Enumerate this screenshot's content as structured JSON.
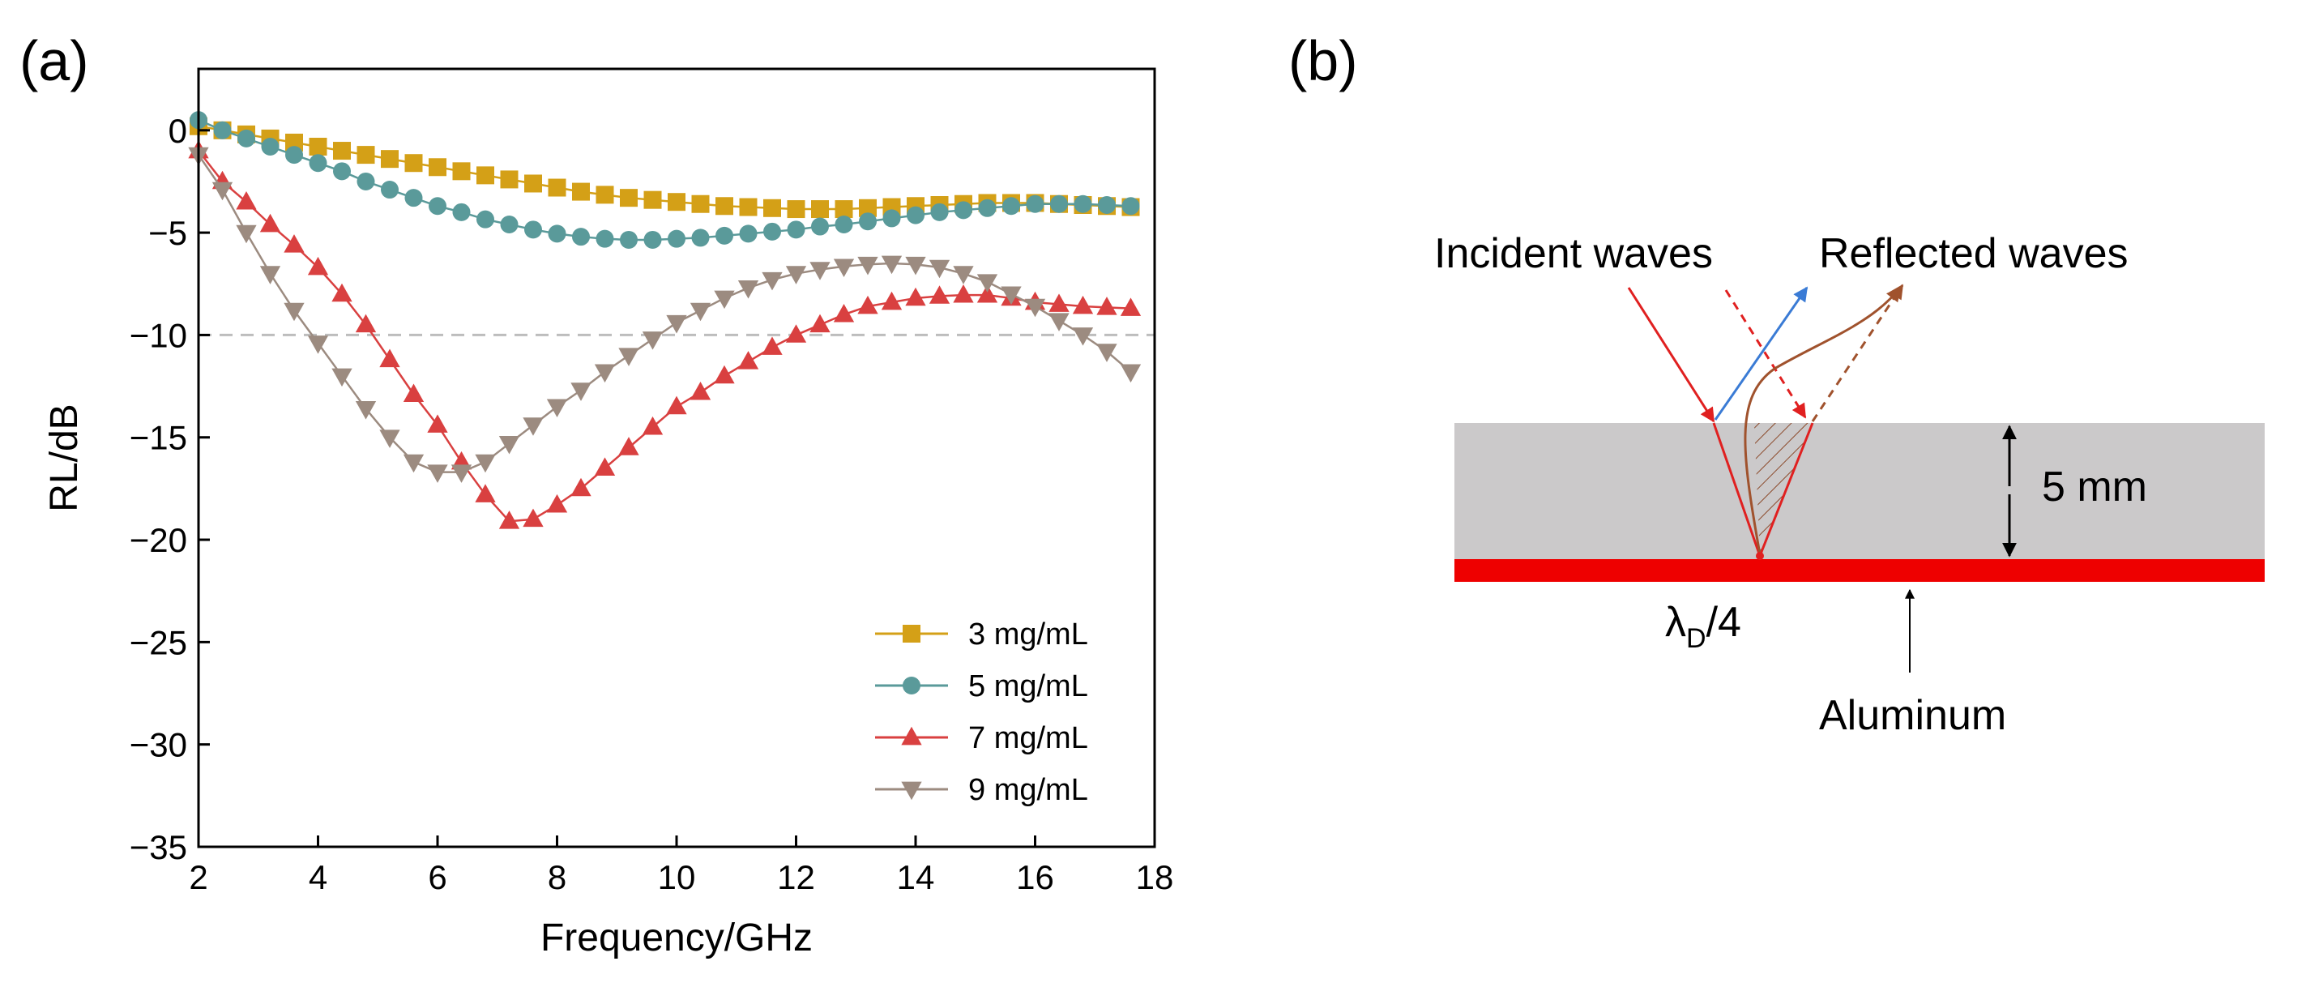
{
  "panels": {
    "a_label": "(a)",
    "b_label": "(b)"
  },
  "chart_data": {
    "type": "line",
    "xlabel": "Frequency/GHz",
    "ylabel": "RL/dB",
    "xlim": [
      2,
      18
    ],
    "ylim": [
      -35,
      3
    ],
    "xticks": [
      2,
      4,
      6,
      8,
      10,
      12,
      14,
      16,
      18
    ],
    "yticks": [
      0,
      -5,
      -10,
      -15,
      -20,
      -25,
      -30,
      -35
    ],
    "xtick_labels": [
      "2",
      "4",
      "6",
      "8",
      "10",
      "12",
      "14",
      "16",
      "18"
    ],
    "ytick_labels": [
      "0",
      "−5",
      "−10",
      "−15",
      "−20",
      "−25",
      "−30",
      "−35"
    ],
    "reference_line": -10,
    "legend_position": "bottom-right",
    "series": [
      {
        "name": "3 mg/mL",
        "color": "#d4a017",
        "marker": "square",
        "x": [
          2,
          2.4,
          2.8,
          3.2,
          3.6,
          4,
          4.4,
          4.8,
          5.2,
          5.6,
          6,
          6.4,
          6.8,
          7.2,
          7.6,
          8,
          8.4,
          8.8,
          9.2,
          9.6,
          10,
          10.4,
          10.8,
          11.2,
          11.6,
          12,
          12.4,
          12.8,
          13.2,
          13.6,
          14,
          14.4,
          14.8,
          15.2,
          15.6,
          16,
          16.4,
          16.8,
          17.2,
          17.6
        ],
        "values": [
          0.2,
          0.0,
          -0.2,
          -0.4,
          -0.6,
          -0.8,
          -1.0,
          -1.2,
          -1.4,
          -1.6,
          -1.8,
          -2.0,
          -2.2,
          -2.4,
          -2.6,
          -2.8,
          -3.0,
          -3.15,
          -3.3,
          -3.4,
          -3.5,
          -3.6,
          -3.7,
          -3.75,
          -3.8,
          -3.85,
          -3.85,
          -3.85,
          -3.8,
          -3.75,
          -3.7,
          -3.65,
          -3.6,
          -3.55,
          -3.55,
          -3.55,
          -3.6,
          -3.65,
          -3.7,
          -3.75
        ]
      },
      {
        "name": "5 mg/mL",
        "color": "#5a9a9a",
        "marker": "circle",
        "x": [
          2,
          2.4,
          2.8,
          3.2,
          3.6,
          4,
          4.4,
          4.8,
          5.2,
          5.6,
          6,
          6.4,
          6.8,
          7.2,
          7.6,
          8,
          8.4,
          8.8,
          9.2,
          9.6,
          10,
          10.4,
          10.8,
          11.2,
          11.6,
          12,
          12.4,
          12.8,
          13.2,
          13.6,
          14,
          14.4,
          14.8,
          15.2,
          15.6,
          16,
          16.4,
          16.8,
          17.2,
          17.6
        ],
        "values": [
          0.5,
          0.0,
          -0.4,
          -0.8,
          -1.2,
          -1.6,
          -2.0,
          -2.5,
          -2.9,
          -3.3,
          -3.7,
          -4.0,
          -4.35,
          -4.6,
          -4.85,
          -5.05,
          -5.2,
          -5.3,
          -5.35,
          -5.35,
          -5.3,
          -5.25,
          -5.15,
          -5.05,
          -4.95,
          -4.85,
          -4.7,
          -4.6,
          -4.45,
          -4.3,
          -4.15,
          -4.0,
          -3.9,
          -3.8,
          -3.7,
          -3.6,
          -3.6,
          -3.6,
          -3.65,
          -3.7
        ]
      },
      {
        "name": "7 mg/mL",
        "color": "#d94040",
        "marker": "triangle-up",
        "x": [
          2,
          2.4,
          2.8,
          3.2,
          3.6,
          4,
          4.4,
          4.8,
          5.2,
          5.6,
          6,
          6.4,
          6.8,
          7.2,
          7.6,
          8,
          8.4,
          8.8,
          9.2,
          9.6,
          10,
          10.4,
          10.8,
          11.2,
          11.6,
          12,
          12.4,
          12.8,
          13.2,
          13.6,
          14,
          14.4,
          14.8,
          15.2,
          15.6,
          16,
          16.4,
          16.8,
          17.2,
          17.6
        ],
        "values": [
          -1.0,
          -2.5,
          -3.5,
          -4.6,
          -5.6,
          -6.7,
          -8.0,
          -9.5,
          -11.2,
          -12.9,
          -14.4,
          -16.2,
          -17.8,
          -19.1,
          -19.0,
          -18.3,
          -17.5,
          -16.5,
          -15.5,
          -14.5,
          -13.5,
          -12.8,
          -12.0,
          -11.3,
          -10.6,
          -10.0,
          -9.5,
          -9.0,
          -8.6,
          -8.4,
          -8.2,
          -8.1,
          -8.05,
          -8.05,
          -8.2,
          -8.4,
          -8.5,
          -8.6,
          -8.65,
          -8.7
        ]
      },
      {
        "name": "9 mg/mL",
        "color": "#9c8b80",
        "marker": "triangle-down",
        "x": [
          2,
          2.4,
          2.8,
          3.2,
          3.6,
          4,
          4.4,
          4.8,
          5.2,
          5.6,
          6,
          6.4,
          6.8,
          7.2,
          7.6,
          8,
          8.4,
          8.8,
          9.2,
          9.6,
          10,
          10.4,
          10.8,
          11.2,
          11.6,
          12,
          12.4,
          12.8,
          13.2,
          13.6,
          14,
          14.4,
          14.8,
          15.2,
          15.6,
          16,
          16.4,
          16.8,
          17.2,
          17.6
        ],
        "values": [
          -1.2,
          -2.9,
          -5.0,
          -7.0,
          -8.8,
          -10.4,
          -12.0,
          -13.6,
          -15.0,
          -16.2,
          -16.7,
          -16.7,
          -16.2,
          -15.3,
          -14.4,
          -13.5,
          -12.7,
          -11.8,
          -11.0,
          -10.2,
          -9.4,
          -8.8,
          -8.2,
          -7.7,
          -7.3,
          -7.0,
          -6.8,
          -6.65,
          -6.55,
          -6.5,
          -6.55,
          -6.7,
          -7.0,
          -7.4,
          -8.0,
          -8.6,
          -9.3,
          -10.0,
          -10.8,
          -11.8
        ]
      }
    ]
  },
  "diagram": {
    "incident_label": "Incident waves",
    "reflected_label": "Reflected waves",
    "thickness_label": "5 mm",
    "lambda_label": "λ",
    "lambda_sub": "D",
    "lambda_suffix": "/4",
    "substrate_label": "Aluminum",
    "layer_color": "#cbc9ca",
    "substrate_color": "#ee0000"
  }
}
